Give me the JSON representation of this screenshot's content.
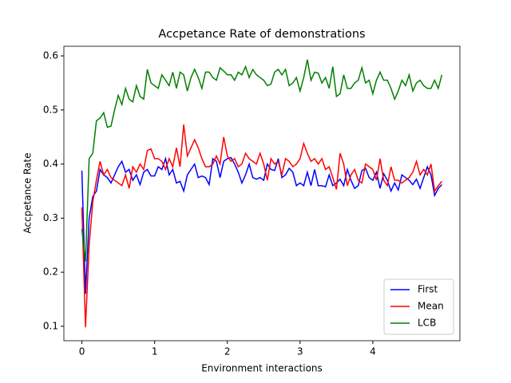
{
  "chart_data": {
    "type": "line",
    "title": "Accpetance Rate of demonstrations",
    "xlabel": "Environment interactions",
    "ylabel": "Accpetance Rate",
    "x": [
      0,
      0.05,
      0.1,
      0.15,
      0.2,
      0.25,
      0.3,
      0.35,
      0.4,
      0.45,
      0.5,
      0.55,
      0.6,
      0.65,
      0.7,
      0.75,
      0.8,
      0.85,
      0.9,
      0.95,
      1,
      1.05,
      1.1,
      1.15,
      1.2,
      1.25,
      1.3,
      1.35,
      1.4,
      1.45,
      1.5,
      1.55,
      1.6,
      1.65,
      1.7,
      1.75,
      1.8,
      1.85,
      1.9,
      1.95,
      2,
      2.05,
      2.1,
      2.15,
      2.2,
      2.25,
      2.3,
      2.35,
      2.4,
      2.45,
      2.5,
      2.55,
      2.6,
      2.65,
      2.7,
      2.75,
      2.8,
      2.85,
      2.9,
      2.95,
      3,
      3.05,
      3.1,
      3.15,
      3.2,
      3.25,
      3.3,
      3.35,
      3.4,
      3.45,
      3.5,
      3.55,
      3.6,
      3.65,
      3.7,
      3.75,
      3.8,
      3.85,
      3.9,
      3.95,
      4,
      4.05,
      4.1,
      4.15,
      4.2,
      4.25,
      4.3,
      4.35,
      4.4,
      4.45,
      4.5,
      4.55,
      4.6,
      4.65,
      4.7,
      4.75,
      4.8,
      4.85,
      4.9,
      4.95
    ],
    "series": [
      {
        "name": "First",
        "color": "#0000ff",
        "values": [
          0.388,
          0.16,
          0.3,
          0.34,
          0.35,
          0.39,
          0.38,
          0.375,
          0.365,
          0.38,
          0.395,
          0.405,
          0.385,
          0.39,
          0.37,
          0.38,
          0.362,
          0.385,
          0.39,
          0.378,
          0.378,
          0.395,
          0.39,
          0.41,
          0.38,
          0.39,
          0.365,
          0.368,
          0.35,
          0.38,
          0.39,
          0.4,
          0.375,
          0.378,
          0.375,
          0.362,
          0.41,
          0.405,
          0.375,
          0.405,
          0.41,
          0.412,
          0.4,
          0.385,
          0.365,
          0.38,
          0.4,
          0.375,
          0.372,
          0.375,
          0.37,
          0.4,
          0.39,
          0.388,
          0.41,
          0.375,
          0.38,
          0.392,
          0.385,
          0.36,
          0.365,
          0.36,
          0.385,
          0.36,
          0.39,
          0.36,
          0.36,
          0.358,
          0.38,
          0.36,
          0.365,
          0.372,
          0.36,
          0.39,
          0.37,
          0.355,
          0.36,
          0.388,
          0.392,
          0.375,
          0.37,
          0.385,
          0.355,
          0.382,
          0.37,
          0.35,
          0.365,
          0.352,
          0.38,
          0.375,
          0.37,
          0.362,
          0.372,
          0.355,
          0.375,
          0.395,
          0.38,
          0.342,
          0.355,
          0.362
        ]
      },
      {
        "name": "Mean",
        "color": "#ff0000",
        "values": [
          0.32,
          0.098,
          0.25,
          0.33,
          0.37,
          0.405,
          0.38,
          0.39,
          0.375,
          0.37,
          0.365,
          0.36,
          0.38,
          0.355,
          0.395,
          0.385,
          0.4,
          0.39,
          0.425,
          0.428,
          0.41,
          0.41,
          0.405,
          0.39,
          0.41,
          0.395,
          0.43,
          0.395,
          0.473,
          0.415,
          0.43,
          0.445,
          0.43,
          0.41,
          0.395,
          0.395,
          0.4,
          0.415,
          0.4,
          0.45,
          0.415,
          0.405,
          0.41,
          0.395,
          0.4,
          0.42,
          0.41,
          0.405,
          0.4,
          0.42,
          0.4,
          0.37,
          0.41,
          0.4,
          0.405,
          0.38,
          0.41,
          0.405,
          0.395,
          0.4,
          0.41,
          0.438,
          0.42,
          0.405,
          0.41,
          0.4,
          0.41,
          0.39,
          0.395,
          0.375,
          0.353,
          0.42,
          0.4,
          0.36,
          0.38,
          0.39,
          0.37,
          0.365,
          0.4,
          0.395,
          0.39,
          0.37,
          0.41,
          0.37,
          0.36,
          0.395,
          0.37,
          0.37,
          0.365,
          0.37,
          0.375,
          0.385,
          0.405,
          0.38,
          0.39,
          0.38,
          0.4,
          0.35,
          0.36,
          0.368
        ]
      },
      {
        "name": "LCB",
        "color": "#008000",
        "values": [
          0.28,
          0.22,
          0.41,
          0.42,
          0.48,
          0.485,
          0.495,
          0.468,
          0.47,
          0.5,
          0.527,
          0.51,
          0.54,
          0.52,
          0.515,
          0.545,
          0.525,
          0.52,
          0.575,
          0.55,
          0.545,
          0.54,
          0.565,
          0.555,
          0.545,
          0.57,
          0.54,
          0.57,
          0.565,
          0.535,
          0.56,
          0.575,
          0.56,
          0.54,
          0.57,
          0.57,
          0.56,
          0.555,
          0.578,
          0.572,
          0.565,
          0.565,
          0.555,
          0.57,
          0.565,
          0.58,
          0.56,
          0.575,
          0.565,
          0.56,
          0.555,
          0.545,
          0.548,
          0.57,
          0.575,
          0.565,
          0.575,
          0.545,
          0.55,
          0.56,
          0.535,
          0.56,
          0.593,
          0.555,
          0.57,
          0.568,
          0.55,
          0.56,
          0.54,
          0.58,
          0.525,
          0.53,
          0.565,
          0.54,
          0.54,
          0.55,
          0.555,
          0.578,
          0.55,
          0.555,
          0.53,
          0.555,
          0.57,
          0.555,
          0.555,
          0.54,
          0.52,
          0.535,
          0.555,
          0.545,
          0.565,
          0.535,
          0.55,
          0.555,
          0.545,
          0.54,
          0.54,
          0.555,
          0.54,
          0.565
        ]
      }
    ],
    "xlim": [
      -0.2475,
      5.1975
    ],
    "ylim": [
      0.0733,
      0.6178
    ],
    "xticks": [
      0,
      1,
      2,
      3,
      4
    ],
    "yticks": [
      0.1,
      0.2,
      0.3,
      0.4,
      0.5,
      0.6
    ],
    "grid": false,
    "legend": "lower right"
  }
}
